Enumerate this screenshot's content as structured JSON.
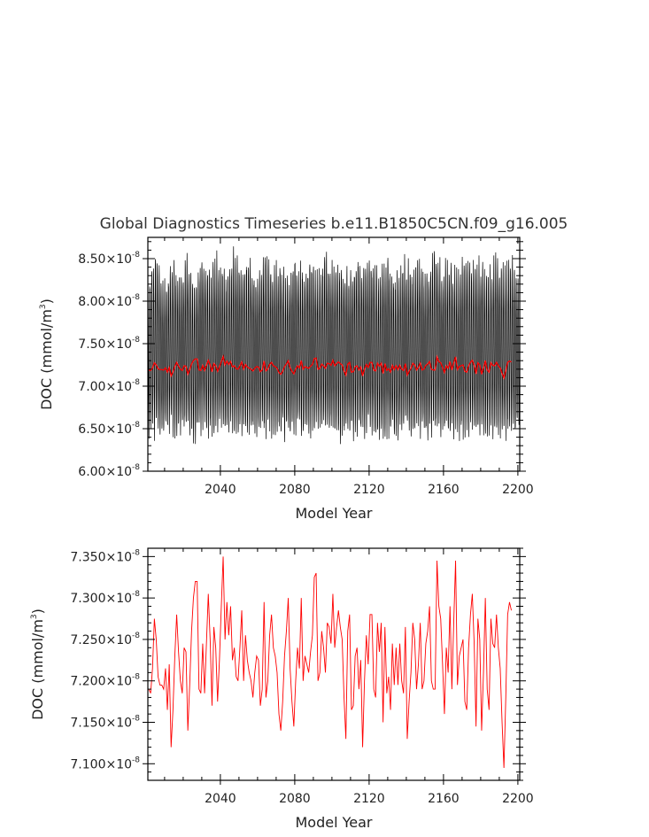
{
  "title": "Global Diagnostics Timeseries b.e11.B1850C5CN.f09_g16.005",
  "colors": {
    "monthly": "#000000",
    "annual": "#ff0000",
    "axis": "#000000"
  },
  "chart_data": [
    {
      "type": "line",
      "xlabel": "Model Year",
      "ylabel_main": "DOC (mmol/m",
      "ylabel_sup": "3",
      "ylabel_close": ")",
      "xlim": [
        2001,
        2201
      ],
      "ylim": [
        6e-08,
        8.75e-08
      ],
      "xticks": [
        {
          "value": 2040,
          "label": "2040"
        },
        {
          "value": 2080,
          "label": "2080"
        },
        {
          "value": 2120,
          "label": "2120"
        },
        {
          "value": 2160,
          "label": "2160"
        },
        {
          "value": 2200,
          "label": "2200"
        }
      ],
      "yticks": [
        {
          "value": 6e-08,
          "mant": "6.00×10",
          "exp": "-8"
        },
        {
          "value": 6.5e-08,
          "mant": "6.50×10",
          "exp": "-8"
        },
        {
          "value": 7e-08,
          "mant": "7.00×10",
          "exp": "-8"
        },
        {
          "value": 7.5e-08,
          "mant": "7.50×10",
          "exp": "-8"
        },
        {
          "value": 8e-08,
          "mant": "8.00×10",
          "exp": "-8"
        },
        {
          "value": 8.5e-08,
          "mant": "8.50×10",
          "exp": "-8"
        }
      ],
      "series": [
        {
          "kind": "monthly_envelope",
          "color": "#000000",
          "x_start": 2001,
          "x_end": 2200,
          "low_values": [
            6.35,
            6.33,
            6.32,
            6.38,
            6.34,
            6.36,
            6.3,
            6.4,
            6.33,
            6.37,
            6.35,
            6.31,
            6.36,
            6.34,
            6.39,
            6.33,
            6.36,
            6.35,
            6.32,
            6.37,
            6.34,
            6.36,
            6.38,
            6.33,
            6.35,
            6.31,
            6.36,
            6.34,
            6.37,
            6.35,
            6.33,
            6.36,
            6.32,
            6.38,
            6.34,
            6.35,
            6.33,
            6.37,
            6.35,
            6.29,
            6.36,
            6.34,
            6.38,
            6.33,
            6.35,
            6.37,
            6.32,
            6.36,
            6.34
          ],
          "high_values": [
            8.3,
            8.7,
            8.25,
            8.55,
            8.4,
            8.6,
            8.32,
            8.66,
            8.45,
            8.62,
            8.38,
            8.67,
            8.5,
            8.58,
            8.36,
            8.63,
            8.44,
            8.55,
            8.35,
            8.62,
            8.48,
            8.58,
            8.4,
            8.64,
            8.46,
            8.56,
            8.38,
            8.63,
            8.5,
            8.57,
            8.42,
            8.62,
            8.36,
            8.58,
            8.48,
            8.6,
            8.4,
            8.7,
            8.45,
            8.6,
            8.38,
            8.64,
            8.5,
            8.58,
            8.42,
            8.62,
            8.46,
            8.6,
            8.35
          ],
          "scale": 1e-08
        },
        {
          "kind": "annual_mean",
          "color": "#ff0000",
          "x_start": 2001,
          "scale": 1e-08,
          "values": [
            7.19,
            7.185,
            7.215,
            7.275,
            7.25,
            7.205,
            7.195,
            7.195,
            7.19,
            7.215,
            7.165,
            7.22,
            7.12,
            7.165,
            7.23,
            7.28,
            7.235,
            7.2,
            7.185,
            7.24,
            7.235,
            7.14,
            7.195,
            7.26,
            7.3,
            7.32,
            7.32,
            7.19,
            7.185,
            7.245,
            7.185,
            7.245,
            7.305,
            7.25,
            7.17,
            7.265,
            7.24,
            7.175,
            7.225,
            7.29,
            7.35,
            7.25,
            7.295,
            7.255,
            7.29,
            7.225,
            7.24,
            7.205,
            7.2,
            7.24,
            7.285,
            7.2,
            7.255,
            7.225,
            7.21,
            7.2,
            7.18,
            7.21,
            7.23,
            7.225,
            7.17,
            7.19,
            7.295,
            7.18,
            7.2,
            7.255,
            7.28,
            7.24,
            7.23,
            7.21,
            7.16,
            7.14,
            7.175,
            7.23,
            7.26,
            7.3,
            7.215,
            7.175,
            7.145,
            7.2,
            7.24,
            7.215,
            7.3,
            7.2,
            7.23,
            7.22,
            7.21,
            7.235,
            7.255,
            7.325,
            7.33,
            7.2,
            7.21,
            7.26,
            7.24,
            7.21,
            7.27,
            7.265,
            7.245,
            7.305,
            7.24,
            7.265,
            7.285,
            7.265,
            7.25,
            7.18,
            7.13,
            7.26,
            7.28,
            7.165,
            7.17,
            7.23,
            7.24,
            7.19,
            7.225,
            7.12,
            7.2,
            7.255,
            7.22,
            7.28,
            7.28,
            7.19,
            7.18,
            7.27,
            7.235,
            7.27,
            7.15,
            7.265,
            7.185,
            7.205,
            7.165,
            7.245,
            7.195,
            7.24,
            7.195,
            7.245,
            7.2,
            7.185,
            7.265,
            7.13,
            7.175,
            7.21,
            7.27,
            7.25,
            7.19,
            7.22,
            7.27,
            7.19,
            7.2,
            7.245,
            7.26,
            7.29,
            7.2,
            7.19,
            7.19,
            7.345,
            7.29,
            7.275,
            7.22,
            7.16,
            7.24,
            7.21,
            7.29,
            7.19,
            7.27,
            7.345,
            7.195,
            7.23,
            7.24,
            7.25,
            7.175,
            7.165,
            7.24,
            7.28,
            7.305,
            7.245,
            7.145,
            7.275,
            7.25,
            7.14,
            7.21,
            7.3,
            7.19,
            7.165,
            7.275,
            7.245,
            7.24,
            7.28,
            7.24,
            7.215,
            7.15,
            7.095,
            7.18,
            7.28,
            7.295,
            7.285
          ]
        }
      ]
    },
    {
      "type": "line",
      "xlabel": "Model Year",
      "ylabel_main": "DOC (mmol/m",
      "ylabel_sup": "3",
      "ylabel_close": ")",
      "xlim": [
        2001,
        2201
      ],
      "ylim": [
        7.08e-08,
        7.36e-08
      ],
      "xticks": [
        {
          "value": 2040,
          "label": "2040"
        },
        {
          "value": 2080,
          "label": "2080"
        },
        {
          "value": 2120,
          "label": "2120"
        },
        {
          "value": 2160,
          "label": "2160"
        },
        {
          "value": 2200,
          "label": "2200"
        }
      ],
      "yticks": [
        {
          "value": 7.1e-08,
          "mant": "7.100×10",
          "exp": "-8"
        },
        {
          "value": 7.15e-08,
          "mant": "7.150×10",
          "exp": "-8"
        },
        {
          "value": 7.2e-08,
          "mant": "7.200×10",
          "exp": "-8"
        },
        {
          "value": 7.25e-08,
          "mant": "7.250×10",
          "exp": "-8"
        },
        {
          "value": 7.3e-08,
          "mant": "7.300×10",
          "exp": "-8"
        },
        {
          "value": 7.35e-08,
          "mant": "7.350×10",
          "exp": "-8"
        }
      ],
      "series": [
        {
          "kind": "annual_mean",
          "color": "#ff0000",
          "x_start": 2001,
          "scale": 1e-08,
          "values_ref": 0
        }
      ]
    }
  ]
}
